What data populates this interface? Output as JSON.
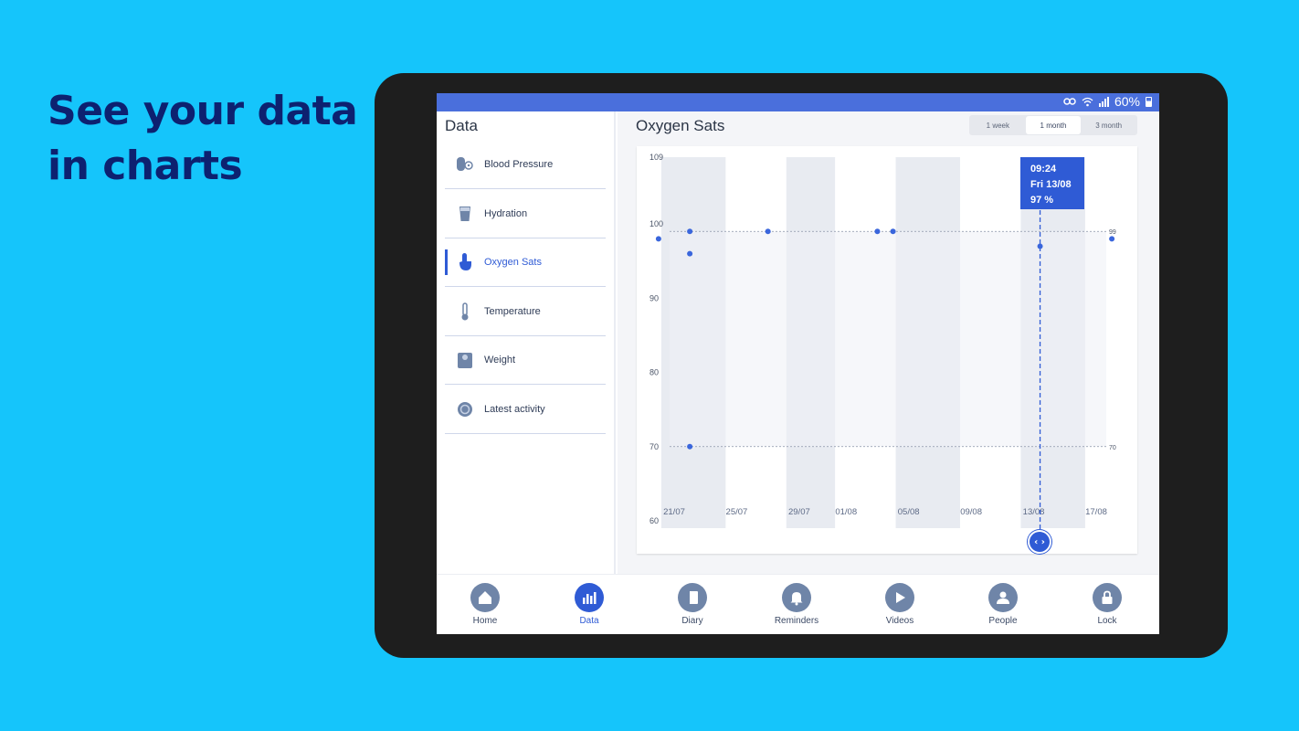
{
  "headline": {
    "line1": "See your data",
    "line2": "in charts"
  },
  "status_bar": {
    "battery": "60%",
    "icons": [
      "vpn-key-icon",
      "wifi-icon",
      "signal-icon",
      "battery-icon"
    ]
  },
  "sidebar": {
    "title": "Data",
    "items": [
      {
        "label": "Blood Pressure",
        "icon": "blood-pressure-icon"
      },
      {
        "label": "Hydration",
        "icon": "glass-icon"
      },
      {
        "label": "Oxygen Sats",
        "icon": "finger-icon",
        "active": true
      },
      {
        "label": "Temperature",
        "icon": "thermometer-icon"
      },
      {
        "label": "Weight",
        "icon": "scale-icon"
      },
      {
        "label": "Latest activity",
        "icon": "activity-icon"
      }
    ]
  },
  "main": {
    "title": "Oxygen Sats",
    "ranges": [
      "1 week",
      "1 month",
      "3 month"
    ],
    "selected_range": "1 month",
    "tooltip": {
      "time": "09:24",
      "date": "Fri 13/08",
      "value": "97 %"
    }
  },
  "chart_data": {
    "type": "scatter",
    "y_ticks": [
      109,
      100,
      90,
      80,
      70,
      60
    ],
    "x_ticks": [
      "21/07",
      "25/07",
      "29/07",
      "01/08",
      "05/08",
      "09/08",
      "13/08",
      "17/08"
    ],
    "reference_lines": [
      99,
      70
    ],
    "reference_labels": [
      "99",
      "70"
    ],
    "ylim": [
      60,
      109
    ],
    "points": [
      {
        "x": "20/07",
        "y": 98
      },
      {
        "x": "22/07",
        "y": 99
      },
      {
        "x": "22/07",
        "y": 96
      },
      {
        "x": "22/07",
        "y": 70
      },
      {
        "x": "27/07",
        "y": 99
      },
      {
        "x": "03/08",
        "y": 99
      },
      {
        "x": "04/08",
        "y": 99
      },
      {
        "x": "13/08",
        "y": 97
      },
      {
        "x": "18/08",
        "y": 98
      }
    ],
    "selected_point": "13/08",
    "colors": {
      "point": "#3a66dc",
      "band": "#e8ebf1",
      "accent": "#2f5bd5"
    }
  },
  "bottom_nav": [
    {
      "label": "Home",
      "icon": "home-icon"
    },
    {
      "label": "Data",
      "icon": "chart-icon",
      "active": true
    },
    {
      "label": "Diary",
      "icon": "diary-icon"
    },
    {
      "label": "Reminders",
      "icon": "bell-icon"
    },
    {
      "label": "Videos",
      "icon": "play-icon"
    },
    {
      "label": "People",
      "icon": "person-icon"
    },
    {
      "label": "Lock",
      "icon": "lock-icon"
    }
  ]
}
